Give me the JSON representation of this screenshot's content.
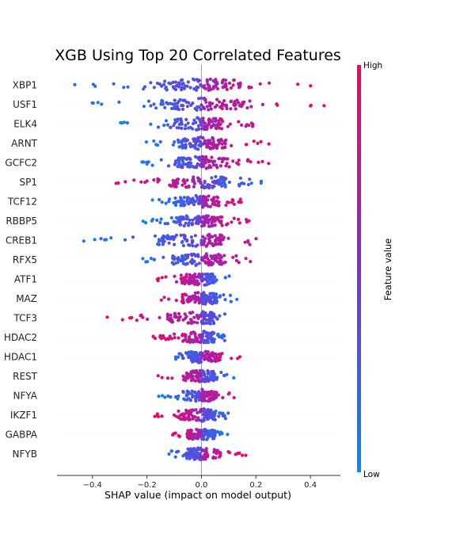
{
  "chart_data": {
    "type": "scatter",
    "subtype": "beeswarm",
    "title": "XGB Using Top 20 Correlated Features",
    "xlabel": "SHAP value (impact on model output)",
    "ylabel": "",
    "xlim": [
      -0.53,
      0.51
    ],
    "xticks": [
      "−0.4",
      "−0.2",
      "0.0",
      "0.2",
      "0.4"
    ],
    "xtick_values": [
      -0.4,
      -0.2,
      0.0,
      0.2,
      0.4
    ],
    "grid": false,
    "colorbar": {
      "label": "Feature value",
      "high_label": "High",
      "low_label": "Low",
      "low_color": "#008afb",
      "mid_color": "#7f2fd0",
      "high_color": "#ff0052"
    },
    "features": [
      {
        "name": "XBP1",
        "min": -0.49,
        "max": 0.42,
        "neg_color": "low",
        "pos_color": "high"
      },
      {
        "name": "USF1",
        "min": -0.43,
        "max": 0.46,
        "neg_color": "low",
        "pos_color": "high"
      },
      {
        "name": "ELK4",
        "min": -0.32,
        "max": 0.2,
        "neg_color": "low",
        "pos_color": "high"
      },
      {
        "name": "ARNT",
        "min": -0.23,
        "max": 0.25,
        "neg_color": "low",
        "pos_color": "high"
      },
      {
        "name": "GCFC2",
        "min": -0.26,
        "max": 0.26,
        "neg_color": "low",
        "pos_color": "high"
      },
      {
        "name": "SP1",
        "min": -0.33,
        "max": 0.24,
        "neg_color": "high",
        "pos_color": "low"
      },
      {
        "name": "TCF12",
        "min": -0.19,
        "max": 0.16,
        "neg_color": "low",
        "pos_color": "high"
      },
      {
        "name": "RBBP5",
        "min": -0.24,
        "max": 0.19,
        "neg_color": "low",
        "pos_color": "high"
      },
      {
        "name": "CREB1",
        "min": -0.48,
        "max": 0.21,
        "neg_color": "low",
        "pos_color": "high"
      },
      {
        "name": "RFX5",
        "min": -0.29,
        "max": 0.18,
        "neg_color": "low",
        "pos_color": "high"
      },
      {
        "name": "ATF1",
        "min": -0.18,
        "max": 0.11,
        "neg_color": "high",
        "pos_color": "low"
      },
      {
        "name": "MAZ",
        "min": -0.18,
        "max": 0.14,
        "neg_color": "high",
        "pos_color": "low"
      },
      {
        "name": "TCF3",
        "min": -0.35,
        "max": 0.09,
        "neg_color": "high",
        "pos_color": "low"
      },
      {
        "name": "HDAC2",
        "min": -0.18,
        "max": 0.09,
        "neg_color": "high",
        "pos_color": "low"
      },
      {
        "name": "HDAC1",
        "min": -0.1,
        "max": 0.17,
        "neg_color": "low",
        "pos_color": "high"
      },
      {
        "name": "REST",
        "min": -0.16,
        "max": 0.13,
        "neg_color": "high",
        "pos_color": "low"
      },
      {
        "name": "NFYA",
        "min": -0.16,
        "max": 0.12,
        "neg_color": "low",
        "pos_color": "high"
      },
      {
        "name": "IKZF1",
        "min": -0.18,
        "max": 0.11,
        "neg_color": "high",
        "pos_color": "low"
      },
      {
        "name": "GABPA",
        "min": -0.11,
        "max": 0.1,
        "neg_color": "high",
        "pos_color": "low"
      },
      {
        "name": "NFYB",
        "min": -0.12,
        "max": 0.17,
        "neg_color": "low",
        "pos_color": "high"
      }
    ]
  }
}
